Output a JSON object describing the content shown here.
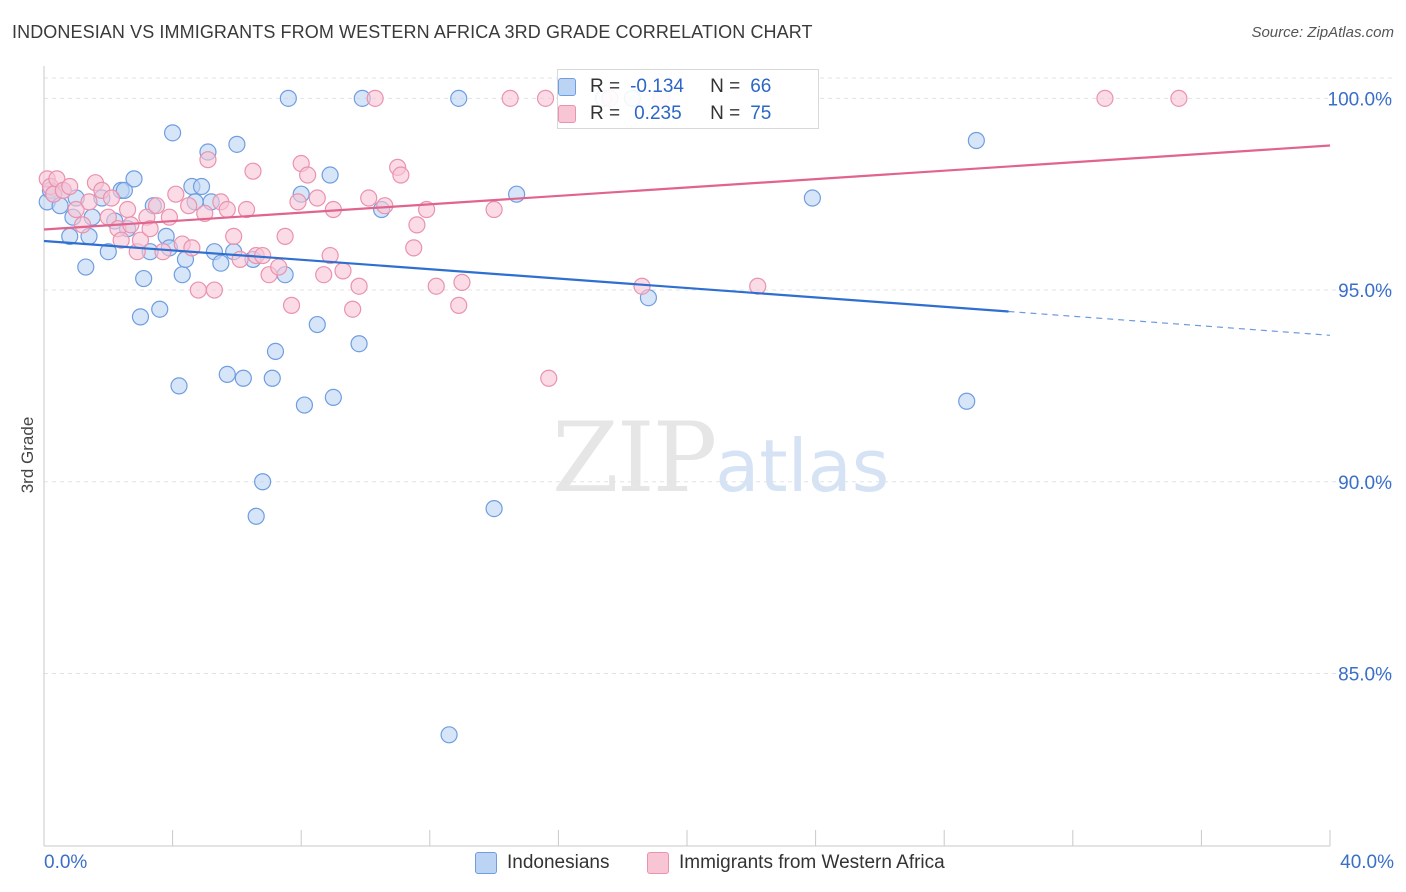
{
  "header": {
    "title": "INDONESIAN VS IMMIGRANTS FROM WESTERN AFRICA 3RD GRADE CORRELATION CHART",
    "source": "Source: ZipAtlas.com"
  },
  "colors": {
    "blue_fill": "#bcd4f4",
    "blue_stroke": "#6f9de0",
    "blue_line": "#2f6fd0",
    "pink_fill": "#f8c5d5",
    "pink_stroke": "#ea92ae",
    "pink_line": "#e0648e",
    "tick_label": "#3a6fc8",
    "grid": "#dfe3e8"
  },
  "legend": {
    "blue": {
      "r_label": "R =",
      "r_value": "-0.134",
      "n_label": "N =",
      "n_value": "66"
    },
    "pink": {
      "r_label": "R =",
      "r_value": "0.235",
      "n_label": "N =",
      "n_value": "75"
    }
  },
  "watermark": {
    "zip": "ZIP",
    "atlas": "atlas"
  },
  "chart_data": {
    "type": "scatter",
    "title": "INDONESIAN VS IMMIGRANTS FROM WESTERN AFRICA 3RD GRADE CORRELATION CHART",
    "xlabel": "",
    "ylabel": "3rd Grade",
    "xlim": [
      0,
      40
    ],
    "ylim": [
      80.5,
      101.0
    ],
    "x_tick_labels": [
      "0.0%",
      "40.0%"
    ],
    "y_ticks": [
      85,
      90,
      95,
      100
    ],
    "y_tick_labels": [
      "85.0%",
      "90.0%",
      "95.0%",
      "100.0%"
    ],
    "grid": true,
    "legend_position": "top-center",
    "series": [
      {
        "name": "Indonesians",
        "color": "#6f9de0",
        "points": [
          [
            0.1,
            97.3
          ],
          [
            0.2,
            97.6
          ],
          [
            0.3,
            97.5
          ],
          [
            0.5,
            97.2
          ],
          [
            0.6,
            97.6
          ],
          [
            0.8,
            96.4
          ],
          [
            0.9,
            96.9
          ],
          [
            1.0,
            97.4
          ],
          [
            1.3,
            95.6
          ],
          [
            1.4,
            96.4
          ],
          [
            1.5,
            96.9
          ],
          [
            1.8,
            97.4
          ],
          [
            2.0,
            96.0
          ],
          [
            2.2,
            96.8
          ],
          [
            2.4,
            97.6
          ],
          [
            2.5,
            97.6
          ],
          [
            2.6,
            96.6
          ],
          [
            2.8,
            97.9
          ],
          [
            3.0,
            94.3
          ],
          [
            3.1,
            95.3
          ],
          [
            3.3,
            96.0
          ],
          [
            3.4,
            97.2
          ],
          [
            3.6,
            94.5
          ],
          [
            3.8,
            96.4
          ],
          [
            3.9,
            96.1
          ],
          [
            4.0,
            99.1
          ],
          [
            4.2,
            92.5
          ],
          [
            4.3,
            95.4
          ],
          [
            4.4,
            95.8
          ],
          [
            4.6,
            97.7
          ],
          [
            4.7,
            97.3
          ],
          [
            4.9,
            97.7
          ],
          [
            5.1,
            98.6
          ],
          [
            5.2,
            97.3
          ],
          [
            5.3,
            96.0
          ],
          [
            5.5,
            95.7
          ],
          [
            5.7,
            92.8
          ],
          [
            5.9,
            96.0
          ],
          [
            6.0,
            98.8
          ],
          [
            6.2,
            92.7
          ],
          [
            6.5,
            95.8
          ],
          [
            6.6,
            89.1
          ],
          [
            6.8,
            90.0
          ],
          [
            7.1,
            92.7
          ],
          [
            7.2,
            93.4
          ],
          [
            7.5,
            95.4
          ],
          [
            7.6,
            100.0
          ],
          [
            8.0,
            97.5
          ],
          [
            8.1,
            92.0
          ],
          [
            8.5,
            94.1
          ],
          [
            8.9,
            98.0
          ],
          [
            9.0,
            92.2
          ],
          [
            9.8,
            93.6
          ],
          [
            9.9,
            100.0
          ],
          [
            10.5,
            97.1
          ],
          [
            12.6,
            83.4
          ],
          [
            12.9,
            100.0
          ],
          [
            14.0,
            89.3
          ],
          [
            14.7,
            97.5
          ],
          [
            17.4,
            100.0
          ],
          [
            18.3,
            100.0
          ],
          [
            18.8,
            94.8
          ],
          [
            19.2,
            100.0
          ],
          [
            23.9,
            97.4
          ],
          [
            28.7,
            92.1
          ],
          [
            29.0,
            98.9
          ]
        ]
      },
      {
        "name": "Immigrants from Western Africa",
        "color": "#ea92ae",
        "points": [
          [
            0.1,
            97.9
          ],
          [
            0.2,
            97.7
          ],
          [
            0.3,
            97.5
          ],
          [
            0.4,
            97.9
          ],
          [
            0.6,
            97.6
          ],
          [
            0.8,
            97.7
          ],
          [
            1.0,
            97.1
          ],
          [
            1.2,
            96.7
          ],
          [
            1.4,
            97.3
          ],
          [
            1.6,
            97.8
          ],
          [
            1.8,
            97.6
          ],
          [
            2.0,
            96.9
          ],
          [
            2.1,
            97.4
          ],
          [
            2.3,
            96.6
          ],
          [
            2.4,
            96.3
          ],
          [
            2.6,
            97.1
          ],
          [
            2.7,
            96.7
          ],
          [
            2.9,
            96.0
          ],
          [
            3.0,
            96.3
          ],
          [
            3.2,
            96.9
          ],
          [
            3.3,
            96.6
          ],
          [
            3.5,
            97.2
          ],
          [
            3.7,
            96.0
          ],
          [
            3.9,
            96.9
          ],
          [
            4.1,
            97.5
          ],
          [
            4.3,
            96.2
          ],
          [
            4.5,
            97.2
          ],
          [
            4.6,
            96.1
          ],
          [
            4.8,
            95.0
          ],
          [
            5.0,
            97.0
          ],
          [
            5.1,
            98.4
          ],
          [
            5.3,
            95.0
          ],
          [
            5.5,
            97.3
          ],
          [
            5.7,
            97.1
          ],
          [
            5.9,
            96.4
          ],
          [
            6.1,
            95.8
          ],
          [
            6.3,
            97.1
          ],
          [
            6.5,
            98.1
          ],
          [
            6.6,
            95.9
          ],
          [
            6.8,
            95.9
          ],
          [
            7.0,
            95.4
          ],
          [
            7.3,
            95.6
          ],
          [
            7.5,
            96.4
          ],
          [
            7.7,
            94.6
          ],
          [
            7.9,
            97.3
          ],
          [
            8.0,
            98.3
          ],
          [
            8.2,
            98.0
          ],
          [
            8.5,
            97.4
          ],
          [
            8.7,
            95.4
          ],
          [
            8.9,
            95.9
          ],
          [
            9.0,
            97.1
          ],
          [
            9.3,
            95.5
          ],
          [
            9.6,
            94.5
          ],
          [
            9.8,
            95.1
          ],
          [
            10.1,
            97.4
          ],
          [
            10.3,
            100.0
          ],
          [
            10.6,
            97.2
          ],
          [
            11.0,
            98.2
          ],
          [
            11.1,
            98.0
          ],
          [
            11.5,
            96.1
          ],
          [
            11.6,
            96.7
          ],
          [
            11.9,
            97.1
          ],
          [
            12.2,
            95.1
          ],
          [
            12.9,
            94.6
          ],
          [
            13.0,
            95.2
          ],
          [
            14.0,
            97.1
          ],
          [
            14.5,
            100.0
          ],
          [
            15.6,
            100.0
          ],
          [
            15.7,
            92.7
          ],
          [
            17.6,
            100.0
          ],
          [
            18.6,
            95.1
          ],
          [
            22.2,
            95.1
          ],
          [
            33.0,
            100.0
          ],
          [
            35.3,
            100.0
          ],
          [
            19.2,
            100.0
          ]
        ]
      }
    ],
    "trendlines": [
      {
        "series": "Indonesians",
        "x0": 0,
        "y0": 96.28,
        "x1": 30.0,
        "y1": 94.44,
        "dashed_to_x": 40,
        "dashed_to_y": 93.82
      },
      {
        "series": "Immigrants from Western Africa",
        "x0": 0,
        "y0": 96.58,
        "x1": 40,
        "y1": 98.77
      }
    ]
  }
}
